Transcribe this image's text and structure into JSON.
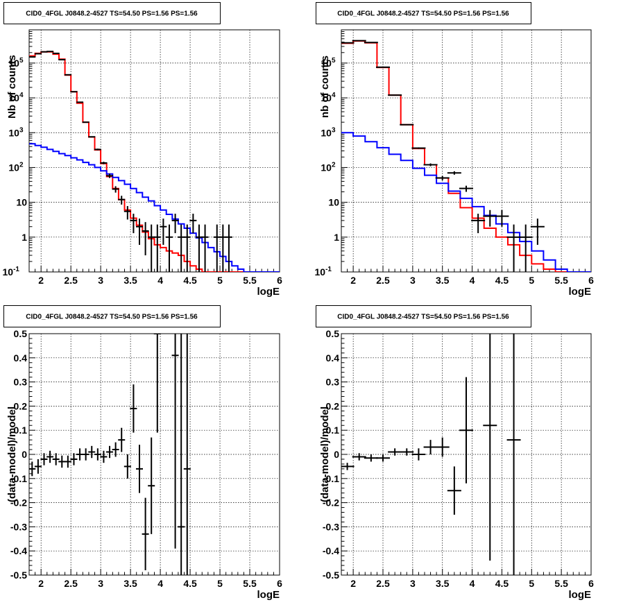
{
  "chart_data": [
    {
      "type": "line",
      "title": "CID0_4FGL J0848.2-4527 TS=54.50 PS=1.56 PS=1.56",
      "xlabel": "logE",
      "ylabel": "Nb of counts",
      "xlim": [
        1.8,
        6
      ],
      "ylim": [
        0.1,
        900000
      ],
      "log_y": true,
      "grid": true,
      "xticks": [
        "2",
        "2.5",
        "3",
        "3.5",
        "4",
        "4.5",
        "5",
        "5.5",
        "6"
      ],
      "yticks": [
        {
          "value": 0.1,
          "base": "10",
          "exp": "-1"
        },
        {
          "value": 1,
          "label": "1"
        },
        {
          "value": 10,
          "label": "10"
        },
        {
          "value": 100,
          "base": "10",
          "exp": "2"
        },
        {
          "value": 1000,
          "base": "10",
          "exp": "3"
        },
        {
          "value": 10000,
          "base": "10",
          "exp": "4"
        },
        {
          "value": 100000,
          "base": "10",
          "exp": "5"
        }
      ],
      "series": [
        {
          "color": "#ff0000",
          "style": "step",
          "edges": [
            1.8,
            1.9,
            2.0,
            2.1,
            2.2,
            2.3,
            2.4,
            2.5,
            2.6,
            2.7,
            2.8,
            2.9,
            3.0,
            3.1,
            3.2,
            3.3,
            3.4,
            3.5,
            3.6,
            3.7,
            3.8,
            3.9,
            4.0,
            4.1,
            4.2,
            4.3,
            4.4,
            4.5,
            4.6,
            4.7,
            4.8,
            4.9,
            5.0,
            5.1,
            5.2,
            5.3,
            5.4,
            5.5,
            5.6,
            5.7,
            5.8,
            5.9,
            6.0
          ],
          "values": [
            160000,
            190000,
            210000,
            210000,
            180000,
            130000,
            45000,
            15000,
            7000,
            2000,
            750,
            320,
            130,
            55,
            25,
            12,
            6,
            3.5,
            2.2,
            1.4,
            0.9,
            0.6,
            0.5,
            0.4,
            0.35,
            0.3,
            0.2,
            0.15,
            0.12,
            0.1,
            0.1,
            0.1,
            0.1,
            0.1,
            0.1,
            0.1,
            0.1,
            0.1,
            0.1,
            0.1,
            0.1,
            0.1
          ]
        },
        {
          "color": "#0000ff",
          "style": "step",
          "edges": [
            1.8,
            1.9,
            2.0,
            2.1,
            2.2,
            2.3,
            2.4,
            2.5,
            2.6,
            2.7,
            2.8,
            2.9,
            3.0,
            3.1,
            3.2,
            3.3,
            3.4,
            3.5,
            3.6,
            3.7,
            3.8,
            3.9,
            4.0,
            4.1,
            4.2,
            4.3,
            4.4,
            4.5,
            4.6,
            4.7,
            4.8,
            4.9,
            5.0,
            5.1,
            5.2,
            5.3,
            5.4,
            5.5,
            5.6,
            5.7,
            5.8,
            5.9,
            6.0
          ],
          "values": [
            480,
            430,
            380,
            330,
            290,
            250,
            220,
            190,
            165,
            140,
            120,
            100,
            80,
            65,
            52,
            42,
            33,
            25,
            19,
            14,
            11,
            8,
            6,
            4.5,
            3.3,
            2.4,
            1.8,
            1.3,
            0.95,
            0.7,
            0.5,
            0.38,
            0.28,
            0.2,
            0.15,
            0.12,
            0.1,
            0.1,
            0.1,
            0.1,
            0.1,
            0.1
          ]
        }
      ],
      "points": {
        "x": [
          1.85,
          1.95,
          2.05,
          2.15,
          2.25,
          2.35,
          2.45,
          2.55,
          2.65,
          2.75,
          2.85,
          2.95,
          3.05,
          3.15,
          3.25,
          3.35,
          3.45,
          3.55,
          3.65,
          3.75,
          3.85,
          3.95,
          4.05,
          4.15,
          4.25,
          4.35,
          4.45,
          4.55,
          4.65,
          4.75,
          4.95,
          5.05,
          5.15
        ],
        "y": [
          150000,
          185000,
          210000,
          215000,
          190000,
          125000,
          46000,
          15000,
          7500,
          2000,
          760,
          330,
          135,
          58,
          24,
          12,
          5.5,
          3,
          2,
          1.5,
          1,
          1,
          2,
          1,
          3,
          1,
          1,
          3,
          1,
          1,
          1,
          1,
          1
        ],
        "low": [
          149000,
          184000,
          209000,
          214000,
          189000,
          124500,
          45800,
          14880,
          7410,
          1955,
          732,
          312,
          124,
          50,
          19,
          8.6,
          3.2,
          1.3,
          0.6,
          0.3,
          0.1,
          0.1,
          0.6,
          0.1,
          1.3,
          0.1,
          0.1,
          1.3,
          0.1,
          0.1,
          0.1,
          0.1,
          0.1
        ],
        "high": [
          151000,
          186000,
          211000,
          216000,
          191000,
          125500,
          46200,
          15120,
          7590,
          2045,
          788,
          348,
          146,
          66,
          29,
          15.4,
          7.8,
          4.7,
          3.4,
          2.7,
          2.3,
          2.3,
          3.4,
          2.3,
          4.7,
          2.3,
          2.3,
          4.7,
          2.3,
          2.3,
          2.3,
          2.3,
          2.3
        ]
      }
    },
    {
      "type": "line",
      "title": "CID0_4FGL J0848.2-4527 TS=54.50 PS=1.56 PS=1.56",
      "xlabel": "logE",
      "ylabel": "nb of counts",
      "xlim": [
        1.8,
        6
      ],
      "ylim": [
        0.1,
        900000
      ],
      "log_y": true,
      "grid": true,
      "xticks": [
        "2",
        "2.5",
        "3",
        "3.5",
        "4",
        "4.5",
        "5",
        "5.5",
        "6"
      ],
      "yticks": [
        {
          "value": 0.1,
          "base": "10",
          "exp": "-1"
        },
        {
          "value": 1,
          "label": "1"
        },
        {
          "value": 10,
          "label": "10"
        },
        {
          "value": 100,
          "base": "10",
          "exp": "2"
        },
        {
          "value": 1000,
          "base": "10",
          "exp": "3"
        },
        {
          "value": 10000,
          "base": "10",
          "exp": "4"
        },
        {
          "value": 100000,
          "base": "10",
          "exp": "5"
        }
      ],
      "series": [
        {
          "color": "#ff0000",
          "style": "step",
          "edges": [
            1.8,
            2.0,
            2.2,
            2.4,
            2.6,
            2.8,
            3.0,
            3.2,
            3.4,
            3.6,
            3.8,
            4.0,
            4.2,
            4.4,
            4.6,
            4.8,
            5.0,
            5.2,
            5.4,
            5.6,
            5.8,
            6.0
          ],
          "values": [
            370000,
            430000,
            380000,
            75000,
            12000,
            1700,
            350,
            120,
            50,
            18,
            7,
            3.5,
            1.8,
            1,
            0.6,
            0.3,
            0.17,
            0.12,
            0.1,
            0.1,
            0.1
          ]
        },
        {
          "color": "#0000ff",
          "style": "step",
          "edges": [
            1.8,
            2.0,
            2.2,
            2.4,
            2.6,
            2.8,
            3.0,
            3.2,
            3.4,
            3.6,
            3.8,
            4.0,
            4.2,
            4.4,
            4.6,
            4.8,
            5.0,
            5.2,
            5.4,
            5.6,
            5.8,
            6.0
          ],
          "values": [
            1000,
            800,
            550,
            370,
            240,
            160,
            95,
            60,
            35,
            21,
            13,
            7.5,
            4.2,
            2.4,
            1.35,
            0.75,
            0.4,
            0.22,
            0.12,
            0.1,
            0.1
          ]
        }
      ],
      "points": {
        "x": [
          1.9,
          2.1,
          2.3,
          2.5,
          2.7,
          2.9,
          3.1,
          3.3,
          3.5,
          3.7,
          3.9,
          4.1,
          4.3,
          4.5,
          4.7,
          4.9,
          5.1
        ],
        "y": [
          380000,
          440000,
          390000,
          76000,
          12000,
          1700,
          360,
          120,
          50,
          70,
          25,
          3,
          4,
          4,
          1,
          1,
          2
        ],
        "low": [
          379000,
          439000,
          389000,
          75700,
          11890,
          1659,
          341,
          109,
          43,
          62,
          20,
          1.3,
          2,
          2,
          0.1,
          0.1,
          0.6
        ],
        "high": [
          381000,
          441000,
          391000,
          76300,
          12110,
          1741,
          379,
          131,
          57,
          78,
          30,
          4.7,
          6,
          6,
          2.3,
          2.3,
          3.4
        ]
      }
    },
    {
      "type": "scatter",
      "title": "CID0_4FGL J0848.2-4527 TS=54.50 PS=1.56 PS=1.56",
      "xlabel": "logE",
      "ylabel": "(data-model)/model",
      "xlim": [
        1.8,
        6
      ],
      "ylim": [
        -0.5,
        0.5
      ],
      "grid": true,
      "xticks": [
        "2",
        "2.5",
        "3",
        "3.5",
        "4",
        "4.5",
        "5",
        "5.5",
        "6"
      ],
      "yticks": [
        "-0.5",
        "-0.4",
        "-0.3",
        "-0.2",
        "-0.1",
        "0",
        "0.1",
        "0.2",
        "0.3",
        "0.4",
        "0.5"
      ],
      "points": {
        "x": [
          1.85,
          1.95,
          2.05,
          2.15,
          2.25,
          2.35,
          2.45,
          2.55,
          2.65,
          2.75,
          2.85,
          2.95,
          3.05,
          3.15,
          3.25,
          3.35,
          3.45,
          3.55,
          3.65,
          3.75,
          3.85,
          3.95,
          4.25,
          4.35,
          4.45
        ],
        "y": [
          -0.06,
          -0.05,
          -0.02,
          -0.01,
          -0.02,
          -0.03,
          -0.03,
          -0.02,
          0.0,
          0.0,
          0.01,
          0.0,
          -0.01,
          0.01,
          0.02,
          0.06,
          -0.05,
          0.19,
          -0.06,
          -0.33,
          -0.13,
          0.5,
          0.41,
          -0.3,
          -0.06
        ],
        "err": [
          0.03,
          0.03,
          0.025,
          0.025,
          0.025,
          0.025,
          0.025,
          0.025,
          0.025,
          0.025,
          0.025,
          0.025,
          0.025,
          0.025,
          0.03,
          0.05,
          0.05,
          0.1,
          0.1,
          0.15,
          0.2,
          0.41,
          0.8,
          0.8,
          0.8
        ]
      }
    },
    {
      "type": "scatter",
      "title": "CID0_4FGL J0848.2-4527 TS=54.50 PS=1.56 PS=1.56",
      "xlabel": "logE",
      "ylabel": "(data-model)/model",
      "xlim": [
        1.8,
        6
      ],
      "ylim": [
        -0.5,
        0.5
      ],
      "grid": true,
      "xticks": [
        "2",
        "2.5",
        "3",
        "3.5",
        "4",
        "4.5",
        "5",
        "5.5",
        "6"
      ],
      "yticks": [
        "-0.5",
        "-0.4",
        "-0.3",
        "-0.2",
        "-0.1",
        "0",
        "0.1",
        "0.2",
        "0.3",
        "0.4",
        "0.5"
      ],
      "points": {
        "x": [
          1.9,
          2.1,
          2.3,
          2.5,
          2.7,
          2.9,
          3.1,
          3.3,
          3.5,
          3.7,
          3.9,
          4.3,
          4.7
        ],
        "y": [
          -0.05,
          -0.01,
          -0.015,
          -0.015,
          0.01,
          0.01,
          0.0,
          0.03,
          0.03,
          -0.15,
          0.1,
          0.12,
          0.06
        ],
        "err": [
          0.015,
          0.015,
          0.015,
          0.015,
          0.015,
          0.015,
          0.025,
          0.03,
          0.04,
          0.1,
          0.22,
          0.56,
          0.6
        ]
      }
    }
  ]
}
